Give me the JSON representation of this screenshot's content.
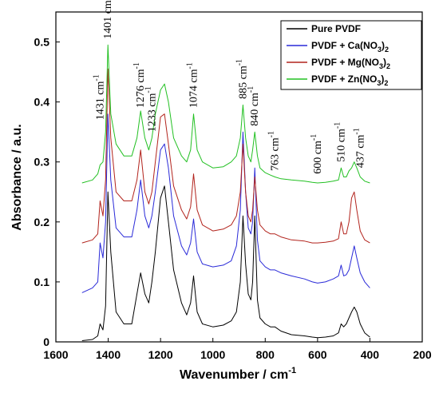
{
  "chart_data": {
    "type": "line",
    "xlabel": "Wavenumber / cm",
    "xlabel_sup": "-1",
    "ylabel": "Absorbance / a.u.",
    "xlim": [
      1600,
      200
    ],
    "ylim": [
      0,
      0.55
    ],
    "x_ticks": [
      "1600",
      "1400",
      "1200",
      "1000",
      "800",
      "600",
      "400",
      "200"
    ],
    "y_ticks": [
      "0",
      "0.1",
      "0.2",
      "0.3",
      "0.4",
      "0.5"
    ],
    "legend_position": "top-right",
    "series": [
      {
        "name": "Pure PVDF",
        "color": "#000000",
        "x": [
          1500,
          1460,
          1440,
          1431,
          1420,
          1410,
          1401,
          1390,
          1370,
          1340,
          1310,
          1290,
          1276,
          1260,
          1245,
          1233,
          1220,
          1200,
          1185,
          1170,
          1150,
          1120,
          1100,
          1085,
          1074,
          1060,
          1040,
          1000,
          960,
          930,
          910,
          895,
          885,
          875,
          865,
          855,
          848,
          840,
          830,
          820,
          800,
          780,
          763,
          740,
          700,
          650,
          620,
          600,
          570,
          540,
          520,
          510,
          500,
          490,
          480,
          470,
          460,
          450,
          437,
          420,
          400
        ],
        "values": [
          0.002,
          0.004,
          0.01,
          0.03,
          0.02,
          0.06,
          0.25,
          0.15,
          0.05,
          0.03,
          0.03,
          0.08,
          0.115,
          0.08,
          0.065,
          0.1,
          0.15,
          0.24,
          0.26,
          0.2,
          0.12,
          0.065,
          0.045,
          0.065,
          0.11,
          0.05,
          0.03,
          0.025,
          0.028,
          0.035,
          0.05,
          0.1,
          0.21,
          0.13,
          0.08,
          0.07,
          0.1,
          0.21,
          0.07,
          0.04,
          0.03,
          0.025,
          0.025,
          0.018,
          0.012,
          0.01,
          0.008,
          0.007,
          0.008,
          0.01,
          0.015,
          0.03,
          0.025,
          0.03,
          0.04,
          0.05,
          0.058,
          0.05,
          0.03,
          0.015,
          0.008
        ]
      },
      {
        "name": "PVDF + Ca(NO3)2",
        "color": "#2a2ad8",
        "x": [
          1500,
          1460,
          1440,
          1431,
          1420,
          1410,
          1401,
          1390,
          1370,
          1340,
          1310,
          1290,
          1276,
          1260,
          1245,
          1233,
          1220,
          1200,
          1185,
          1170,
          1150,
          1120,
          1100,
          1085,
          1074,
          1060,
          1040,
          1000,
          960,
          930,
          910,
          895,
          885,
          875,
          865,
          855,
          848,
          840,
          830,
          820,
          800,
          780,
          763,
          740,
          700,
          650,
          620,
          600,
          570,
          540,
          520,
          510,
          500,
          490,
          480,
          470,
          460,
          450,
          437,
          420,
          400
        ],
        "values": [
          0.082,
          0.09,
          0.1,
          0.165,
          0.14,
          0.2,
          0.38,
          0.27,
          0.19,
          0.175,
          0.175,
          0.22,
          0.27,
          0.21,
          0.19,
          0.21,
          0.25,
          0.32,
          0.33,
          0.29,
          0.21,
          0.16,
          0.145,
          0.165,
          0.205,
          0.15,
          0.13,
          0.125,
          0.128,
          0.135,
          0.16,
          0.22,
          0.35,
          0.25,
          0.19,
          0.18,
          0.2,
          0.29,
          0.17,
          0.135,
          0.125,
          0.12,
          0.12,
          0.115,
          0.11,
          0.105,
          0.1,
          0.098,
          0.1,
          0.105,
          0.11,
          0.128,
          0.11,
          0.112,
          0.12,
          0.14,
          0.16,
          0.14,
          0.115,
          0.1,
          0.09
        ]
      },
      {
        "name": "PVDF + Mg(NO3)2",
        "color": "#b2231c",
        "x": [
          1500,
          1460,
          1440,
          1431,
          1420,
          1410,
          1401,
          1390,
          1370,
          1340,
          1310,
          1290,
          1276,
          1260,
          1245,
          1233,
          1220,
          1200,
          1185,
          1170,
          1150,
          1120,
          1100,
          1085,
          1074,
          1060,
          1040,
          1000,
          960,
          930,
          910,
          895,
          885,
          875,
          865,
          855,
          848,
          840,
          830,
          820,
          800,
          780,
          763,
          740,
          700,
          650,
          620,
          600,
          570,
          540,
          520,
          510,
          500,
          490,
          480,
          470,
          460,
          450,
          437,
          420,
          400
        ],
        "values": [
          0.165,
          0.17,
          0.18,
          0.235,
          0.21,
          0.27,
          0.455,
          0.34,
          0.25,
          0.235,
          0.235,
          0.27,
          0.32,
          0.25,
          0.23,
          0.25,
          0.3,
          0.375,
          0.38,
          0.33,
          0.26,
          0.22,
          0.205,
          0.225,
          0.28,
          0.22,
          0.195,
          0.185,
          0.188,
          0.195,
          0.21,
          0.25,
          0.33,
          0.25,
          0.21,
          0.2,
          0.22,
          0.275,
          0.22,
          0.195,
          0.185,
          0.18,
          0.18,
          0.175,
          0.17,
          0.168,
          0.165,
          0.165,
          0.166,
          0.168,
          0.172,
          0.2,
          0.18,
          0.18,
          0.2,
          0.24,
          0.25,
          0.22,
          0.185,
          0.17,
          0.165
        ]
      },
      {
        "name": "PVDF + Zn(NO3)2",
        "color": "#22c022",
        "x": [
          1500,
          1460,
          1440,
          1431,
          1420,
          1410,
          1401,
          1390,
          1370,
          1340,
          1310,
          1290,
          1276,
          1260,
          1245,
          1233,
          1220,
          1200,
          1185,
          1170,
          1150,
          1120,
          1100,
          1085,
          1074,
          1060,
          1040,
          1000,
          960,
          930,
          910,
          895,
          885,
          875,
          865,
          855,
          848,
          840,
          830,
          820,
          800,
          780,
          763,
          740,
          700,
          650,
          620,
          600,
          570,
          540,
          520,
          510,
          500,
          490,
          480,
          470,
          460,
          450,
          437,
          420,
          400
        ],
        "values": [
          0.265,
          0.27,
          0.28,
          0.295,
          0.3,
          0.35,
          0.495,
          0.38,
          0.33,
          0.31,
          0.31,
          0.34,
          0.385,
          0.34,
          0.32,
          0.34,
          0.38,
          0.42,
          0.43,
          0.4,
          0.34,
          0.31,
          0.3,
          0.32,
          0.38,
          0.32,
          0.3,
          0.29,
          0.292,
          0.3,
          0.31,
          0.34,
          0.395,
          0.34,
          0.31,
          0.3,
          0.32,
          0.35,
          0.31,
          0.29,
          0.282,
          0.278,
          0.275,
          0.272,
          0.27,
          0.268,
          0.266,
          0.265,
          0.266,
          0.268,
          0.27,
          0.29,
          0.275,
          0.275,
          0.285,
          0.29,
          0.3,
          0.29,
          0.275,
          0.268,
          0.265
        ]
      }
    ],
    "legend": [
      {
        "base": "Pure PVDF",
        "sub": "",
        "tail": ""
      },
      {
        "base": "PVDF + Ca(NO",
        "sub": "3",
        "tail": ")",
        "sub2": "2"
      },
      {
        "base": "PVDF + Mg(NO",
        "sub": "3",
        "tail": ")",
        "sub2": "2"
      },
      {
        "base": "PVDF + Zn(NO",
        "sub": "3",
        "tail": ")",
        "sub2": "2"
      }
    ],
    "peak_labels": [
      {
        "num": "1431",
        "unit": " cm",
        "sup": "-1",
        "wavenumber": 1431,
        "absorbance": 0.37
      },
      {
        "num": "1401",
        "unit": " cm",
        "sup": "-1",
        "wavenumber": 1401,
        "absorbance": 0.505
      },
      {
        "num": "1276",
        "unit": " cm",
        "sup": "-1",
        "wavenumber": 1276,
        "absorbance": 0.39
      },
      {
        "num": "1233",
        "unit": " cm",
        "sup": "-1",
        "wavenumber": 1233,
        "absorbance": 0.35
      },
      {
        "num": "1074",
        "unit": " cm",
        "sup": "-1",
        "wavenumber": 1074,
        "absorbance": 0.39
      },
      {
        "num": "885",
        "unit": " cm",
        "sup": "-1",
        "wavenumber": 885,
        "absorbance": 0.405
      },
      {
        "num": "840",
        "unit": " cm",
        "sup": "-1",
        "wavenumber": 840,
        "absorbance": 0.36
      },
      {
        "num": "763",
        "unit": " cm",
        "sup": "-1",
        "wavenumber": 763,
        "absorbance": 0.285
      },
      {
        "num": "600",
        "unit": " cm",
        "sup": "-1",
        "wavenumber": 600,
        "absorbance": 0.28
      },
      {
        "num": "510",
        "unit": " cm",
        "sup": "-1",
        "wavenumber": 510,
        "absorbance": 0.3
      },
      {
        "num": "437",
        "unit": " cm",
        "sup": "-1",
        "wavenumber": 437,
        "absorbance": 0.29
      }
    ]
  }
}
